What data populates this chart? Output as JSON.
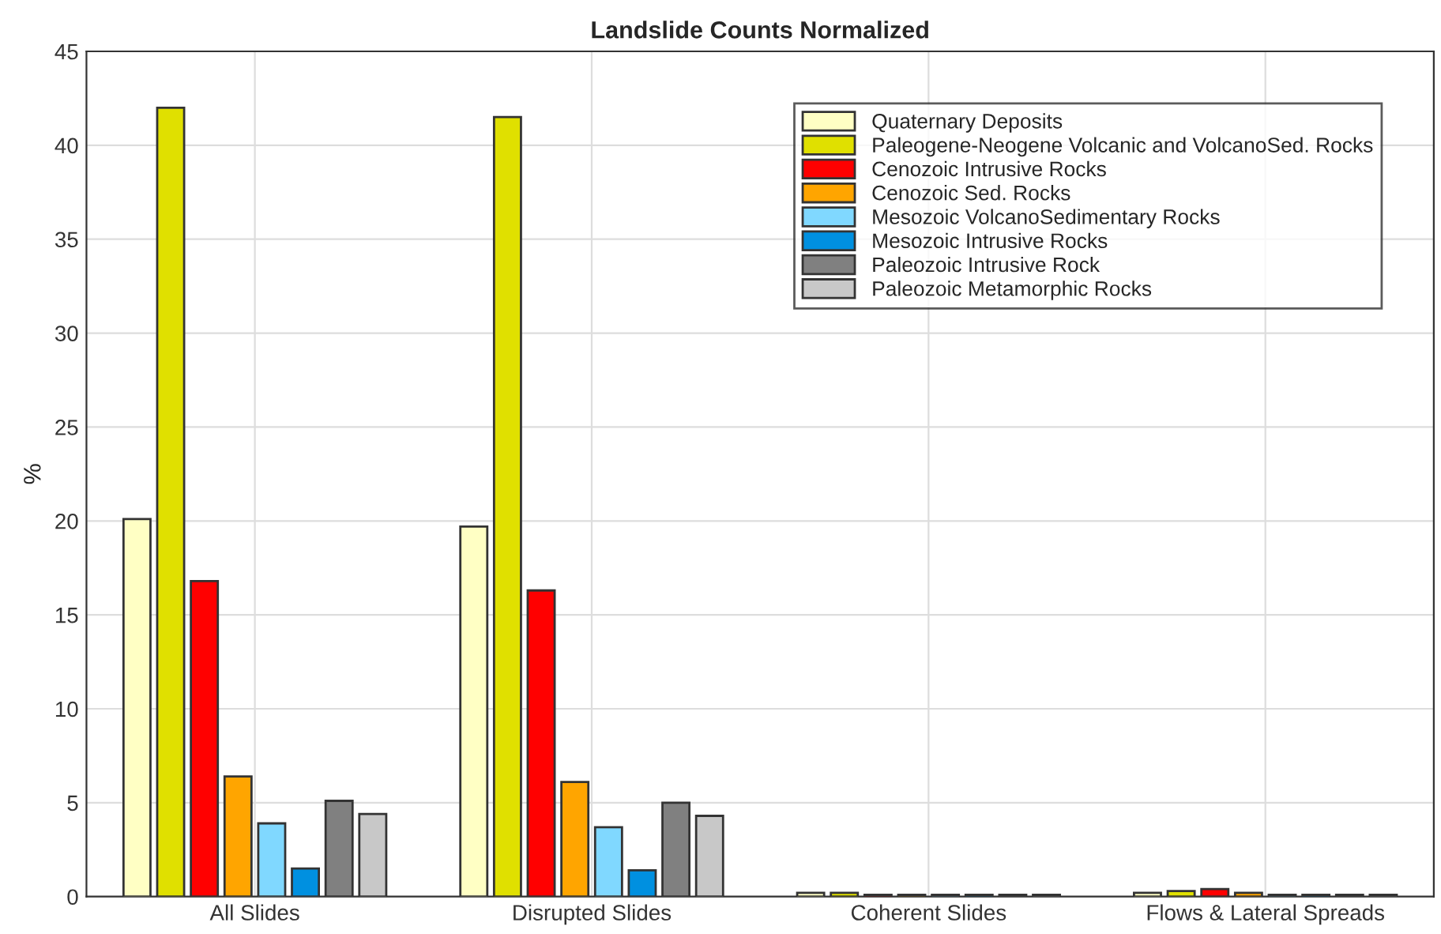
{
  "chart_data": {
    "type": "bar",
    "title": "Landslide Counts Normalized",
    "ylabel": "%",
    "categories": [
      "All Slides",
      "Disrupted Slides",
      "Coherent Slides",
      "Flows & Lateral Spreads"
    ],
    "series": [
      {
        "name": "Quaternary Deposits",
        "color": "#ffffc4",
        "values": [
          20.1,
          19.7,
          0.2,
          0.2
        ]
      },
      {
        "name": "Paleogene-Neogene Volcanic and VolcanoSed. Rocks",
        "color": "#e0e000",
        "values": [
          42.0,
          41.5,
          0.2,
          0.3
        ]
      },
      {
        "name": "Cenozoic Intrusive Rocks",
        "color": "#ff0000",
        "values": [
          16.8,
          16.3,
          0.1,
          0.4
        ]
      },
      {
        "name": "Cenozoic Sed. Rocks",
        "color": "#ffa500",
        "values": [
          6.4,
          6.1,
          0.1,
          0.2
        ]
      },
      {
        "name": "Mesozoic VolcanoSedimentary Rocks",
        "color": "#80d8ff",
        "values": [
          3.9,
          3.7,
          0.1,
          0.1
        ]
      },
      {
        "name": "Mesozoic Intrusive Rocks",
        "color": "#0090e0",
        "values": [
          1.5,
          1.4,
          0.1,
          0.1
        ]
      },
      {
        "name": "Paleozoic Intrusive Rock",
        "color": "#808080",
        "values": [
          5.1,
          5.0,
          0.1,
          0.1
        ]
      },
      {
        "name": "Paleozoic Metamorphic Rocks",
        "color": "#c8c8c8",
        "values": [
          4.4,
          4.3,
          0.1,
          0.1
        ]
      }
    ],
    "ylim": [
      0,
      45
    ],
    "yticks": [
      0,
      5,
      10,
      15,
      20,
      25,
      30,
      35,
      40,
      45
    ],
    "grid": true,
    "legend": "top right"
  }
}
